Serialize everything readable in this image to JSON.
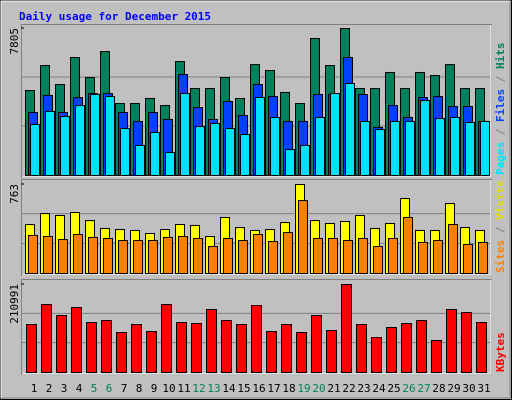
{
  "chart_data": {
    "type": "bar",
    "title": "Daily usage for December 2015",
    "categories": [
      "1",
      "2",
      "3",
      "4",
      "5",
      "6",
      "7",
      "8",
      "9",
      "10",
      "11",
      "12",
      "13",
      "14",
      "15",
      "16",
      "17",
      "18",
      "19",
      "20",
      "21",
      "22",
      "23",
      "24",
      "25",
      "26",
      "27",
      "28",
      "29",
      "30",
      "31"
    ],
    "category_colors": [
      "#000000",
      "#000000",
      "#000000",
      "#000000",
      "#00805c",
      "#00805c",
      "#000000",
      "#000000",
      "#000000",
      "#000000",
      "#000000",
      "#00805c",
      "#00805c",
      "#000000",
      "#000000",
      "#000000",
      "#000000",
      "#000000",
      "#00805c",
      "#00805c",
      "#000000",
      "#000000",
      "#000000",
      "#000000",
      "#000000",
      "#00805c",
      "#00805c",
      "#000000",
      "#000000",
      "#000000",
      "#000000"
    ],
    "panels": [
      {
        "ylim": [
          0,
          7805
        ],
        "yticks": [
          7805
        ],
        "series": [
          {
            "name": "Hits",
            "color": "#00805c",
            "values": [
              4513,
              5840,
              4830,
              6265,
              5200,
              6580,
              3820,
              3820,
              4090,
              3715,
              6050,
              4620,
              4620,
              5200,
              4090,
              5890,
              5575,
              4410,
              3820,
              7275,
              5840,
              7805,
              4620,
              4620,
              5470,
              4620,
              5470,
              5310,
              5890,
              4620,
              4620
            ]
          },
          {
            "name": "Files",
            "color": "#0040ff",
            "values": [
              3345,
              4250,
              3345,
              4140,
              4350,
              4350,
              3345,
              2870,
              3345,
              2975,
              5360,
              3610,
              2975,
              3930,
              3185,
              4830,
              4195,
              2870,
              2870,
              4300,
              4300,
              6265,
              4300,
              2550,
              3715,
              3080,
              4140,
              4195,
              3665,
              3665,
              2870
            ]
          },
          {
            "name": "Pages",
            "color": "#00e0ff",
            "values": [
              2710,
              3400,
              3130,
              3715,
              4300,
              4195,
              2495,
              1595,
              2285,
              1220,
              4350,
              2600,
              2760,
              2495,
              2175,
              4140,
              3080,
              1380,
              1595,
              3080,
              4350,
              4885,
              2870,
              2440,
              2870,
              2870,
              3980,
              3025,
              3080,
              2815,
              2870
            ]
          }
        ]
      },
      {
        "ylim": [
          0,
          763
        ],
        "yticks": [
          763
        ],
        "series": [
          {
            "name": "Visits",
            "color": "#ffff00",
            "values": [
              420,
              514,
              497,
              523,
              454,
              386,
              377,
              369,
              343,
              377,
              420,
              412,
              317,
              480,
              394,
              369,
              377,
              437,
              763,
              454,
              429,
              446,
              497,
              386,
              429,
              643,
              369,
              369,
              600,
              394,
              369
            ]
          },
          {
            "name": "Sites",
            "color": "#ff8000",
            "values": [
              326,
              317,
              291,
              334,
              309,
              300,
              283,
              283,
              283,
              309,
              317,
              300,
              231,
              300,
              283,
              334,
              274,
              351,
              626,
              300,
              300,
              283,
              300,
              231,
              300,
              480,
              266,
              283,
              420,
              249,
              266
            ]
          }
        ]
      },
      {
        "ylim": [
          0,
          210991
        ],
        "yticks": [
          210991
        ],
        "series": [
          {
            "name": "KBytes",
            "color": "#ff0000",
            "values": [
              115086,
              163040,
              136660,
              155850,
              119880,
              124680,
              95905,
              115086,
              98300,
              163040,
              119880,
              117480,
              151050,
              124680,
              115086,
              160640,
              98300,
              115086,
              95905,
              136660,
              100700,
              210991,
              115086,
              83920,
              107890,
              117480,
              124680,
              76720,
              151050,
              143860,
              119880
            ]
          }
        ]
      }
    ]
  }
}
